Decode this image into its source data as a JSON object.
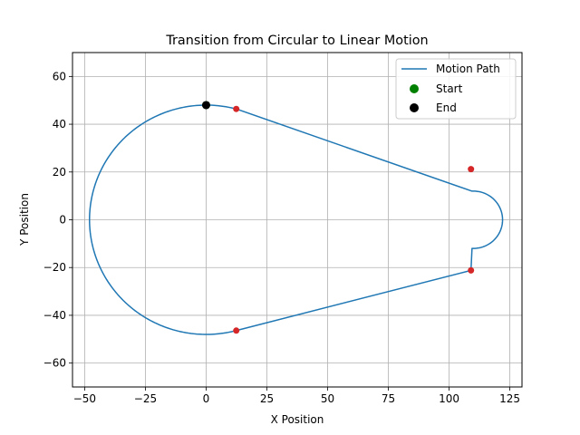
{
  "chart_data": {
    "type": "line",
    "title": "Transition from Circular to Linear Motion",
    "xlabel": "X Position",
    "ylabel": "Y Position",
    "xlim": [
      -55,
      130
    ],
    "ylim": [
      -70,
      70
    ],
    "xticks": [
      -50,
      -25,
      0,
      25,
      50,
      75,
      100,
      125
    ],
    "yticks": [
      -60,
      -40,
      -20,
      0,
      20,
      40,
      60
    ],
    "grid": true,
    "legend_position": "top-right",
    "legend": [
      "Motion Path",
      "Start",
      "End"
    ],
    "colors": {
      "path": "#1f77b4",
      "start": "#008000",
      "end": "#000000",
      "markers": "#d62728"
    },
    "circle": {
      "center": [
        0,
        0
      ],
      "radius": 48
    },
    "arc_right": {
      "center": [
        110,
        0
      ],
      "radius": 12
    },
    "start_point": [
      0,
      48
    ],
    "end_point": [
      0,
      48
    ],
    "tangent_points": [
      [
        12.4,
        46.4
      ],
      [
        109.0,
        21.2
      ],
      [
        109.0,
        -21.2
      ],
      [
        12.4,
        -46.4
      ]
    ]
  }
}
